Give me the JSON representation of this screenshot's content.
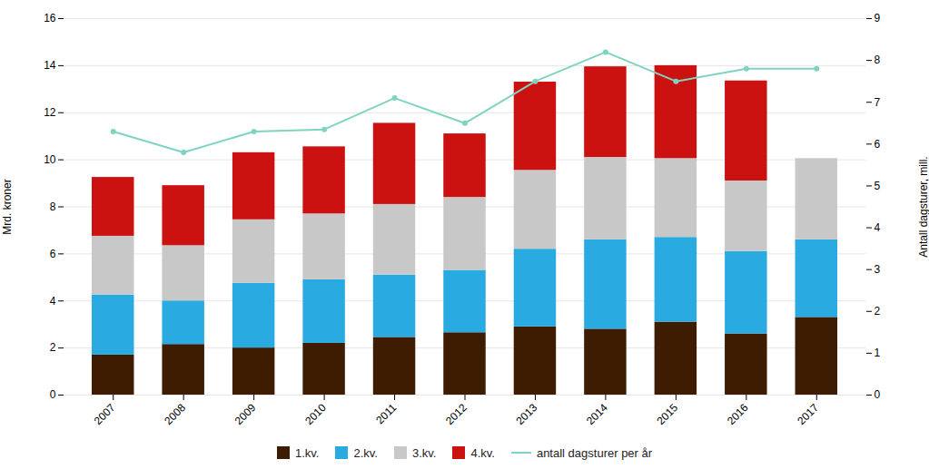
{
  "chart_data": {
    "type": "bar",
    "stacked": true,
    "categories": [
      "2007",
      "2008",
      "2009",
      "2010",
      "2011",
      "2012",
      "2013",
      "2014",
      "2015",
      "2016",
      "2017"
    ],
    "series": [
      {
        "name": "1.kv.",
        "color": "#3d1c02",
        "values": [
          1.7,
          2.15,
          2.0,
          2.2,
          2.45,
          2.65,
          2.9,
          2.8,
          3.1,
          2.6,
          3.3
        ]
      },
      {
        "name": "2.kv.",
        "color": "#29abe2",
        "values": [
          2.55,
          1.85,
          2.75,
          2.7,
          2.65,
          2.65,
          3.3,
          3.8,
          3.6,
          3.5,
          3.3
        ]
      },
      {
        "name": "3.kv.",
        "color": "#c8c8c8",
        "values": [
          2.5,
          2.35,
          2.7,
          2.8,
          3.0,
          3.1,
          3.35,
          3.5,
          3.35,
          3.0,
          3.45
        ]
      },
      {
        "name": "4.kv.",
        "color": "#cc1111",
        "values": [
          2.5,
          2.55,
          2.85,
          2.85,
          3.45,
          2.7,
          3.75,
          3.85,
          3.95,
          4.25,
          0.0
        ]
      },
      {
        "name": "antall dagsturer per år",
        "type": "line",
        "axis": "y2",
        "color": "#7fd4c1",
        "marker": "circle",
        "values": [
          6.3,
          5.8,
          6.3,
          6.35,
          7.1,
          6.5,
          7.5,
          8.2,
          7.5,
          7.8,
          7.8
        ]
      }
    ],
    "ylabel": "Mrd. kroner",
    "y2label": "Antall dagsturer, mill.",
    "ylim": [
      0,
      16
    ],
    "yticks": [
      0,
      2,
      4,
      6,
      8,
      10,
      12,
      14,
      16
    ],
    "y2lim": [
      0,
      9
    ],
    "y2ticks": [
      0,
      1,
      2,
      3,
      4,
      5,
      6,
      7,
      8,
      9
    ],
    "grid": true,
    "legend": "bottom"
  }
}
